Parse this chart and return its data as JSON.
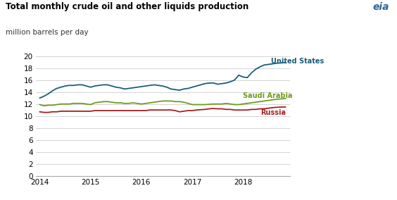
{
  "title": "Total monthly crude oil and other liquids production",
  "subtitle": "million barrels per day",
  "ylim": [
    0,
    20
  ],
  "yticks": [
    0,
    2,
    4,
    6,
    8,
    10,
    12,
    14,
    16,
    18,
    20
  ],
  "xlim_start": 2014.0,
  "xlim_end": 2018.92,
  "xtick_labels": [
    "2014",
    "2015",
    "2016",
    "2017",
    "2018"
  ],
  "xtick_positions": [
    2014,
    2015,
    2016,
    2017,
    2018
  ],
  "background_color": "#ffffff",
  "grid_color": "#cccccc",
  "us_color": "#1b5e7b",
  "saudi_color": "#6e9c1e",
  "russia_color": "#a52020",
  "us_label": "United States",
  "saudi_label": "Saudi Arabia",
  "russia_label": "Russia",
  "us_data": [
    13.0,
    13.3,
    13.7,
    14.2,
    14.6,
    14.8,
    15.0,
    15.1,
    15.1,
    15.2,
    15.2,
    15.0,
    14.8,
    15.0,
    15.1,
    15.2,
    15.2,
    15.0,
    14.8,
    14.7,
    14.5,
    14.6,
    14.7,
    14.8,
    14.9,
    15.0,
    15.1,
    15.2,
    15.1,
    15.0,
    14.8,
    14.5,
    14.4,
    14.3,
    14.5,
    14.6,
    14.8,
    15.0,
    15.2,
    15.4,
    15.5,
    15.5,
    15.3,
    15.4,
    15.5,
    15.7,
    16.0,
    16.8,
    16.5,
    16.4,
    17.2,
    17.8,
    18.2,
    18.5,
    18.6,
    18.7,
    18.8,
    18.85,
    18.9
  ],
  "saudi_data": [
    11.9,
    11.7,
    11.8,
    11.8,
    11.9,
    12.0,
    12.0,
    12.0,
    12.1,
    12.1,
    12.1,
    12.0,
    11.9,
    12.2,
    12.3,
    12.4,
    12.4,
    12.3,
    12.2,
    12.2,
    12.1,
    12.1,
    12.2,
    12.1,
    12.0,
    12.1,
    12.2,
    12.3,
    12.4,
    12.5,
    12.5,
    12.5,
    12.4,
    12.4,
    12.3,
    12.1,
    11.9,
    11.9,
    11.9,
    11.9,
    11.95,
    12.0,
    12.0,
    12.0,
    12.1,
    12.0,
    11.9,
    11.9,
    12.0,
    12.1,
    12.2,
    12.3,
    12.4,
    12.5,
    12.6,
    12.7,
    12.8,
    12.85,
    12.9
  ],
  "russia_data": [
    10.7,
    10.6,
    10.6,
    10.7,
    10.7,
    10.8,
    10.8,
    10.8,
    10.8,
    10.8,
    10.8,
    10.8,
    10.8,
    10.9,
    10.9,
    10.9,
    10.9,
    10.9,
    10.9,
    10.9,
    10.9,
    10.9,
    10.9,
    10.9,
    10.9,
    10.9,
    11.0,
    11.0,
    11.0,
    11.0,
    11.0,
    11.0,
    10.9,
    10.7,
    10.8,
    10.9,
    10.9,
    11.0,
    11.05,
    11.1,
    11.2,
    11.25,
    11.2,
    11.2,
    11.1,
    11.1,
    11.0,
    11.0,
    11.0,
    11.0,
    11.1,
    11.1,
    11.2,
    11.2,
    11.3,
    11.4,
    11.45,
    11.5,
    11.5
  ]
}
